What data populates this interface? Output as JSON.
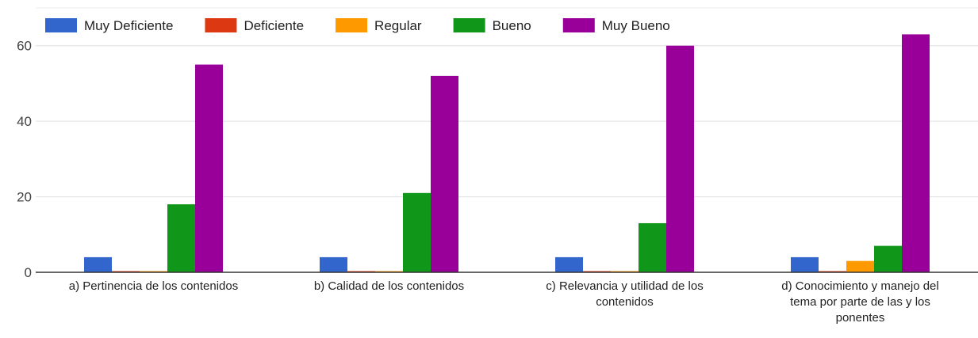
{
  "chart_data": {
    "type": "bar",
    "categories": [
      "a) Pertinencia de los contenidos",
      "b) Calidad de los contenidos",
      "c) Relevancia y utilidad de los contenidos",
      "d) Conocimiento y manejo del tema por parte de las y los ponentes"
    ],
    "series": [
      {
        "name": "Muy Deficiente",
        "color": "#3366cc",
        "values": [
          4,
          4,
          4,
          4
        ]
      },
      {
        "name": "Deficiente",
        "color": "#dc3912",
        "values": [
          0,
          0,
          0,
          0
        ]
      },
      {
        "name": "Regular",
        "color": "#ff9900",
        "values": [
          0,
          0,
          0,
          3
        ]
      },
      {
        "name": "Bueno",
        "color": "#109618",
        "values": [
          18,
          21,
          13,
          7
        ]
      },
      {
        "name": "Muy Bueno",
        "color": "#990099",
        "values": [
          55,
          52,
          60,
          63
        ]
      }
    ],
    "ylim": [
      0,
      70
    ],
    "yticks": [
      0,
      20,
      40,
      60
    ],
    "grid": true,
    "legend": "top"
  }
}
